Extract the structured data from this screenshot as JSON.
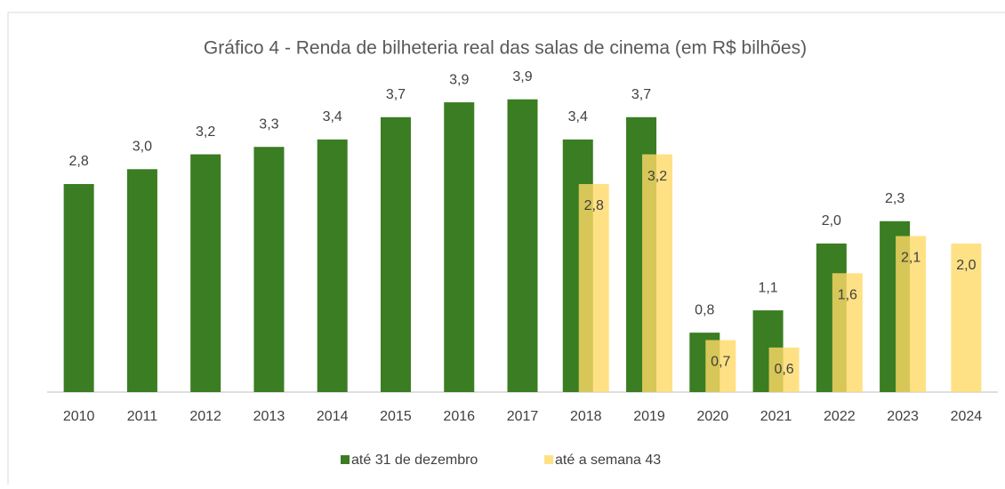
{
  "chart_data": {
    "type": "bar",
    "title": "Gráfico 4 - Renda de bilheteria real das salas de cinema (em R$ bilhões)",
    "categories": [
      "2010",
      "2011",
      "2012",
      "2013",
      "2014",
      "2015",
      "2016",
      "2017",
      "2018",
      "2019",
      "2020",
      "2021",
      "2022",
      "2023",
      "2024"
    ],
    "series": [
      {
        "name": "até 31 de dezembro",
        "color": "#3a7d22",
        "values": [
          2.8,
          3.0,
          3.2,
          3.3,
          3.4,
          3.7,
          3.9,
          3.94,
          3.4,
          3.7,
          0.8,
          1.1,
          2.0,
          2.3,
          null
        ],
        "value_labels": [
          "2,8",
          "3,0",
          "3,2",
          "3,3",
          "3,4",
          "3,7",
          "3,9",
          "3,9",
          "3,4",
          "3,7",
          "0,8",
          "1,1",
          "2,0",
          "2,3",
          null
        ]
      },
      {
        "name": "até a semana 43",
        "color": "#ffd966",
        "values": [
          null,
          null,
          null,
          null,
          null,
          null,
          null,
          null,
          2.8,
          3.2,
          0.7,
          0.6,
          1.6,
          2.1,
          2.0
        ],
        "value_labels": [
          null,
          null,
          null,
          null,
          null,
          null,
          null,
          null,
          "2,8",
          "3,2",
          "0,7",
          "0,6",
          "1,6",
          "2,1",
          "2,0"
        ]
      }
    ],
    "ylim": [
      0,
      4.2
    ]
  }
}
